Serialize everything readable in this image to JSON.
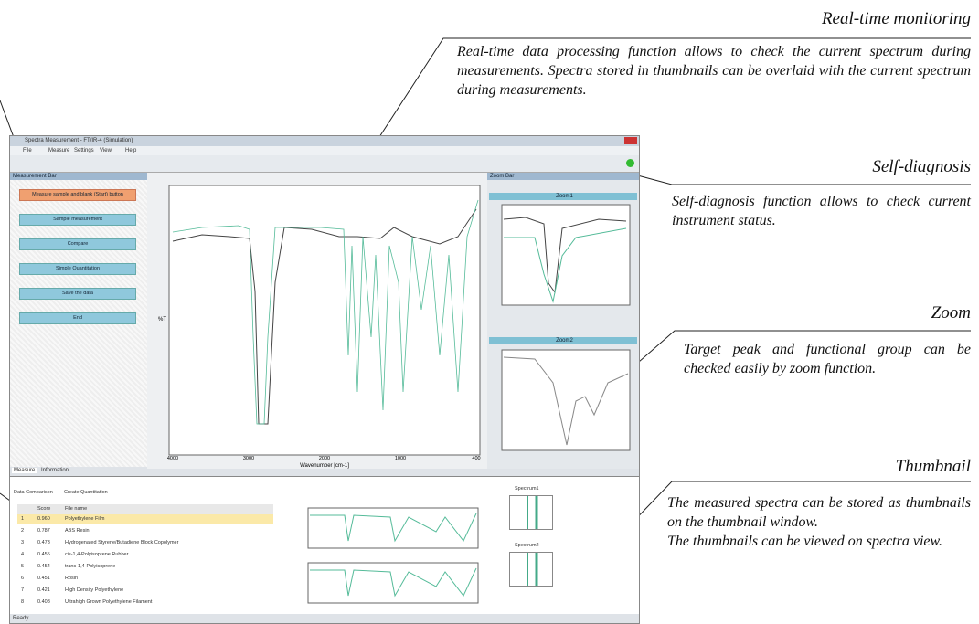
{
  "annotations": [
    {
      "title": "Real-time monitoring",
      "paragraphs": [
        "Real-time data processing function allows to check the current spectrum during measurements. Spectra stored in thumbnails can be overlaid with the current spectrum during measurements."
      ]
    },
    {
      "title": "Self-diagnosis",
      "paragraphs": [
        "Self-diagnosis function allows to check current instrument status."
      ]
    },
    {
      "title": "Zoom",
      "paragraphs": [
        "Target peak and functional group can be checked easily by zoom function."
      ]
    },
    {
      "title": "Thumbnail",
      "paragraphs": [
        "The measured spectra can be stored as thumbnails on the thumbnail window.",
        "The thumbnails can be viewed on spectra view."
      ]
    }
  ],
  "window": {
    "title": "Spectra Measurement - FT/IR-4 (Simulation)",
    "menu": [
      "File",
      "Measure",
      "Settings",
      "View",
      "Help"
    ],
    "measurement_bar": {
      "header": "Measurement Bar",
      "steps": [
        "Measure sample and blank (Start) button",
        "Sample measurement",
        "Compare",
        "Simple Quantitation",
        "Save the data",
        "End"
      ],
      "tabs": [
        "Measure",
        "Information"
      ]
    },
    "zoom_bar": {
      "header": "Zoom Bar",
      "panels": [
        "Zoom1",
        "Zoom2"
      ]
    },
    "main_chart": {
      "y_label": "%T",
      "x_label": "Wavenumber [cm-1]",
      "xticks": [
        "4000",
        "3000",
        "2000",
        "1000",
        "400"
      ]
    },
    "search": {
      "tabs": [
        "Data Comparison",
        "Create Quantitation"
      ],
      "headers": [
        "",
        "Score",
        "File name"
      ],
      "rows": [
        [
          "1",
          "0.960",
          "Polyethylene Film"
        ],
        [
          "2",
          "0.787",
          "ABS Resin"
        ],
        [
          "3",
          "0.473",
          "Hydrogenated Styrene/Butadiene Block Copolymer"
        ],
        [
          "4",
          "0.455",
          "cis-1,4-Polyisoprene Rubber"
        ],
        [
          "5",
          "0.454",
          "trans-1,4-Polyisoprene"
        ],
        [
          "6",
          "0.451",
          "Rosin"
        ],
        [
          "7",
          "0.421",
          "High Density Polyethylene"
        ],
        [
          "8",
          "0.408",
          "Ultrahigh Grown Polyethylene Filament"
        ]
      ]
    },
    "thumbnails": [
      "Spectrum1",
      "Spectrum2"
    ],
    "status": "Ready"
  }
}
